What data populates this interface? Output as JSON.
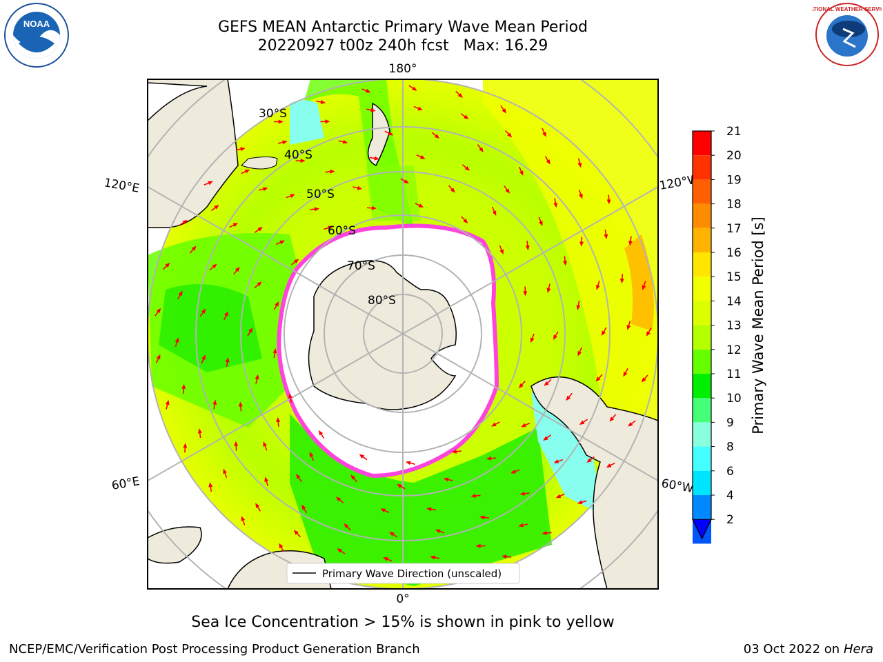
{
  "title_line1": "GEFS MEAN Antarctic Primary Wave Mean Period",
  "title_line2": "20220927 t00z 240h fcst   Max: 16.29",
  "caption": "Sea Ice Concentration > 15% is shown in pink to yellow",
  "footer_left": "NCEP/EMC/Verification Post Processing Product Generation Branch",
  "footer_date": "03 Oct 2022 on",
  "footer_host": "Hera",
  "legend_label": "Primary Wave Direction (unscaled)",
  "logos": {
    "left": "noaa-logo",
    "right": "nws-logo",
    "right_text": "NATIONAL WEATHER SERVICE"
  },
  "map": {
    "meridian_labels": {
      "top": "180°",
      "bottom": "0°",
      "left_upper": "120°E",
      "left_lower": "60°E",
      "right_upper": "120°W",
      "right_lower": "60°W"
    },
    "parallel_labels": [
      "30°S",
      "40°S",
      "50°S",
      "60°S",
      "70°S",
      "80°S"
    ]
  },
  "colorbar": {
    "label": "Primary Wave Mean Period [s]",
    "ticks": [
      "21",
      "20",
      "19",
      "18",
      "17",
      "16",
      "15",
      "14",
      "13",
      "12",
      "11",
      "10",
      "9",
      "8",
      "6",
      "4",
      "2"
    ],
    "colors": [
      "#ff0000",
      "#ff3300",
      "#ff5f00",
      "#ff8c00",
      "#ffb300",
      "#ffe600",
      "#f2ff00",
      "#d9ff00",
      "#b4ff00",
      "#66ff00",
      "#00ee00",
      "#44ff77",
      "#88ffdd",
      "#44ffff",
      "#00e5ff",
      "#0088ff",
      "#0055ff"
    ]
  },
  "colors": {
    "arrow": "#ff0000",
    "land": "#efebdc",
    "grid": "#b3b3b3",
    "ice": "#ff44dd",
    "ice_edge": "#ffaa44"
  }
}
